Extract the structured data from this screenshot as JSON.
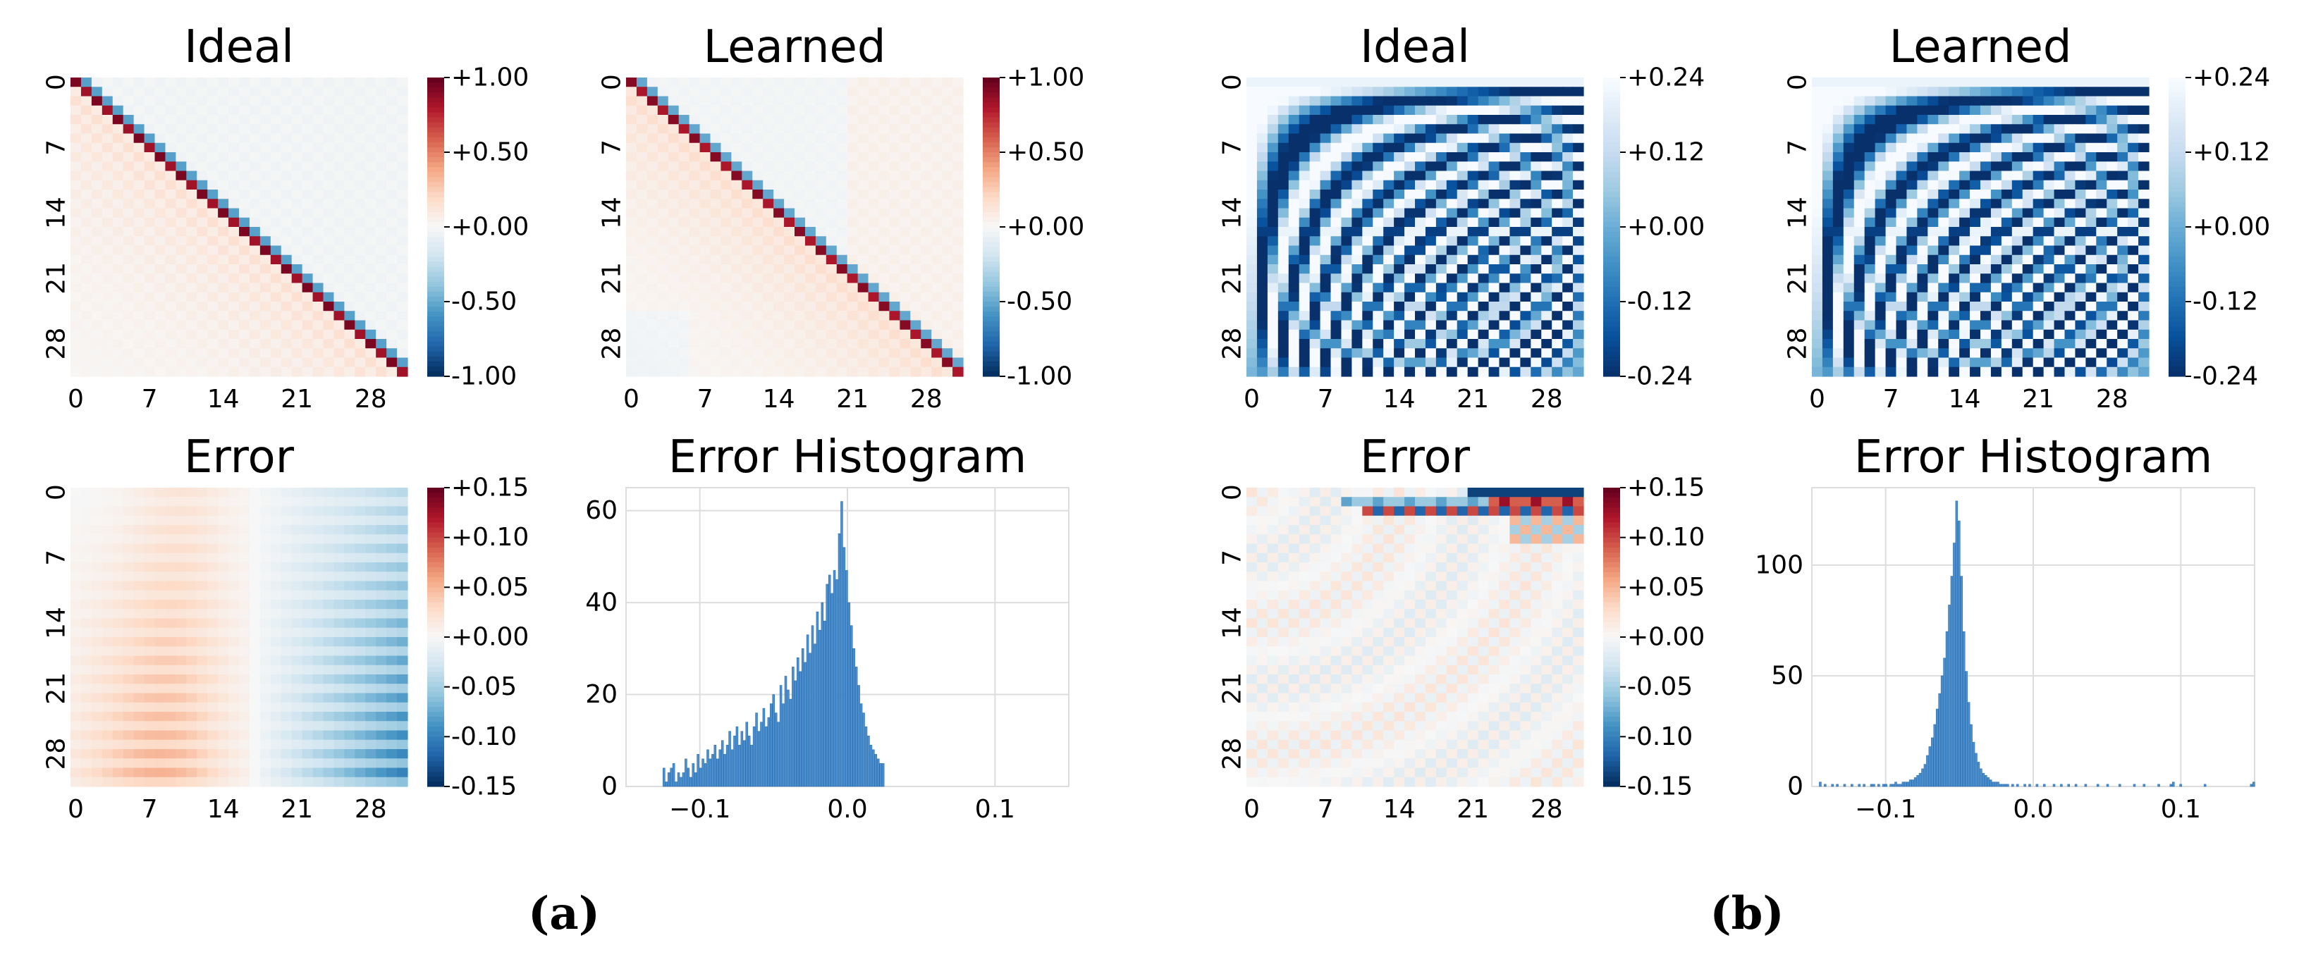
{
  "panel_labels": [
    "(a)",
    "(b)"
  ],
  "colors": {
    "rdbu": [
      "#053061",
      "#2166ac",
      "#4393c3",
      "#92c5de",
      "#d1e5f0",
      "#f7f7f7",
      "#fddbc7",
      "#f4a582",
      "#d6604d",
      "#b2182b",
      "#67001f"
    ],
    "blues_tail": [
      "#08306b",
      "#08519c",
      "#2171b5",
      "#4292c6",
      "#6baed6",
      "#9ecae1",
      "#c6dbef",
      "#deebf7",
      "#f7fbff"
    ],
    "hist_bar": "#4a8fd0",
    "hist_edge": "#2f6fae",
    "grid": "#dddddd"
  },
  "chart_data": [
    {
      "type": "heatmap",
      "panel": "a",
      "title": "Ideal",
      "cmap": "RdBu_r",
      "size": 32,
      "xticks": [
        "0",
        "7",
        "14",
        "21",
        "28"
      ],
      "yticks": [
        "0",
        "7",
        "14",
        "21",
        "28"
      ],
      "colorbar": {
        "ticks": [
          "+1.00",
          "+0.50",
          "+0.00",
          "-0.50",
          "-1.00"
        ],
        "range": [
          -1.0,
          1.0
        ]
      },
      "pattern": "dst-ii-inverse"
    },
    {
      "type": "heatmap",
      "panel": "a",
      "title": "Learned",
      "cmap": "RdBu_r",
      "size": 32,
      "xticks": [
        "0",
        "7",
        "14",
        "21",
        "28"
      ],
      "yticks": [
        "0",
        "7",
        "14",
        "21",
        "28"
      ],
      "colorbar": {
        "ticks": [
          "+1.00",
          "+0.50",
          "+0.00",
          "-0.50",
          "-1.00"
        ],
        "range": [
          -1.0,
          1.0
        ]
      },
      "pattern": "dst-ii-inverse-learned"
    },
    {
      "type": "heatmap",
      "panel": "a",
      "title": "Error",
      "cmap": "RdBu_r",
      "size": 32,
      "xticks": [
        "0",
        "7",
        "14",
        "21",
        "28"
      ],
      "yticks": [
        "0",
        "7",
        "14",
        "21",
        "28"
      ],
      "colorbar": {
        "ticks": [
          "+0.15",
          "+0.10",
          "+0.05",
          "+0.00",
          "-0.05",
          "-0.10",
          "-0.15"
        ],
        "range": [
          -0.15,
          0.15
        ]
      },
      "pattern": "error-a"
    },
    {
      "type": "bar",
      "panel": "a",
      "title": "Error Histogram",
      "xlim": [
        -0.15,
        0.15
      ],
      "ylim": [
        0,
        65
      ],
      "xticks": [
        -0.1,
        0.0,
        0.1
      ],
      "xtick_labels": [
        "−0.1",
        "0.0",
        "0.1"
      ],
      "yticks": [
        0,
        20,
        40,
        60
      ],
      "ytick_labels": [
        "0",
        "20",
        "40",
        "60"
      ],
      "bin_start": -0.125,
      "bin_width": 0.00165,
      "values": [
        4,
        1,
        3,
        4,
        5,
        1,
        3,
        2,
        3,
        6,
        4,
        2,
        5,
        3,
        7,
        4,
        6,
        5,
        8,
        6,
        7,
        9,
        6,
        8,
        10,
        7,
        9,
        12,
        8,
        11,
        13,
        9,
        12,
        10,
        14,
        11,
        9,
        13,
        16,
        12,
        14,
        17,
        13,
        15,
        18,
        20,
        16,
        14,
        22,
        18,
        24,
        21,
        19,
        26,
        23,
        28,
        25,
        30,
        27,
        33,
        29,
        35,
        31,
        38,
        34,
        40,
        36,
        44,
        46,
        42,
        47,
        45,
        55,
        62,
        52,
        47,
        40,
        35,
        30,
        26,
        22,
        18,
        16,
        13,
        11,
        9,
        8,
        7,
        6,
        5,
        5
      ]
    },
    {
      "type": "heatmap",
      "panel": "b",
      "title": "Ideal",
      "cmap": "Blues_r",
      "size": 32,
      "xticks": [
        "0",
        "7",
        "14",
        "21",
        "28"
      ],
      "yticks": [
        "0",
        "7",
        "14",
        "21",
        "28"
      ],
      "colorbar": {
        "ticks": [
          "+0.24",
          "+0.12",
          "+0.00",
          "-0.12",
          "-0.24"
        ],
        "range": [
          -0.24,
          0.24
        ]
      },
      "pattern": "dct-basis"
    },
    {
      "type": "heatmap",
      "panel": "b",
      "title": "Learned",
      "cmap": "Blues_r",
      "size": 32,
      "xticks": [
        "0",
        "7",
        "14",
        "21",
        "28"
      ],
      "yticks": [
        "0",
        "7",
        "14",
        "21",
        "28"
      ],
      "colorbar": {
        "ticks": [
          "+0.24",
          "+0.12",
          "+0.00",
          "-0.12",
          "-0.24"
        ],
        "range": [
          -0.24,
          0.24
        ]
      },
      "pattern": "dct-basis"
    },
    {
      "type": "heatmap",
      "panel": "b",
      "title": "Error",
      "cmap": "RdBu_r",
      "size": 32,
      "xticks": [
        "0",
        "7",
        "14",
        "21",
        "28"
      ],
      "yticks": [
        "0",
        "7",
        "14",
        "21",
        "28"
      ],
      "colorbar": {
        "ticks": [
          "+0.15",
          "+0.10",
          "+0.05",
          "+0.00",
          "-0.05",
          "-0.10",
          "-0.15"
        ],
        "range": [
          -0.15,
          0.15
        ]
      },
      "pattern": "error-b"
    },
    {
      "type": "bar",
      "panel": "b",
      "title": "Error Histogram",
      "xlim": [
        -0.15,
        0.15
      ],
      "ylim": [
        0,
        135
      ],
      "xticks": [
        -0.1,
        0.0,
        0.1
      ],
      "xtick_labels": [
        "−0.1",
        "0.0",
        "0.1"
      ],
      "yticks": [
        0,
        50,
        100
      ],
      "ytick_labels": [
        "0",
        "50",
        "100"
      ],
      "bin_start": -0.145,
      "bin_width": 0.00165,
      "values": [
        2,
        0,
        1,
        0,
        0,
        1,
        0,
        1,
        0,
        0,
        1,
        0,
        0,
        1,
        0,
        0,
        1,
        0,
        1,
        0,
        0,
        1,
        1,
        0,
        1,
        0,
        1,
        1,
        0,
        1,
        1,
        2,
        1,
        1,
        2,
        2,
        2,
        3,
        3,
        4,
        5,
        6,
        8,
        10,
        14,
        18,
        22,
        28,
        35,
        42,
        50,
        58,
        70,
        82,
        95,
        110,
        129,
        120,
        95,
        70,
        52,
        38,
        28,
        20,
        15,
        11,
        8,
        6,
        5,
        4,
        3,
        2,
        2,
        2,
        1,
        1,
        1,
        1,
        0,
        1,
        0,
        1,
        0,
        0,
        1,
        0,
        1,
        0,
        0,
        1,
        0,
        0,
        1,
        0,
        0,
        0,
        1,
        0,
        0,
        1,
        0,
        0,
        1,
        0,
        0,
        1,
        0,
        0,
        0,
        1,
        0,
        0,
        0,
        0,
        1,
        0,
        0,
        0,
        1,
        0,
        0,
        0,
        0,
        1,
        0,
        0,
        0,
        0,
        0,
        1,
        0,
        0,
        0,
        1,
        0,
        0,
        0,
        0,
        0,
        1,
        0,
        0,
        0,
        0,
        1,
        2,
        0,
        0,
        1,
        0,
        0,
        0,
        0,
        0,
        0,
        0,
        0,
        0,
        1,
        0,
        0,
        0,
        0,
        0,
        0,
        0,
        0,
        0,
        0,
        0,
        0,
        0,
        0,
        0,
        0,
        0,
        0,
        1,
        2
      ]
    }
  ]
}
